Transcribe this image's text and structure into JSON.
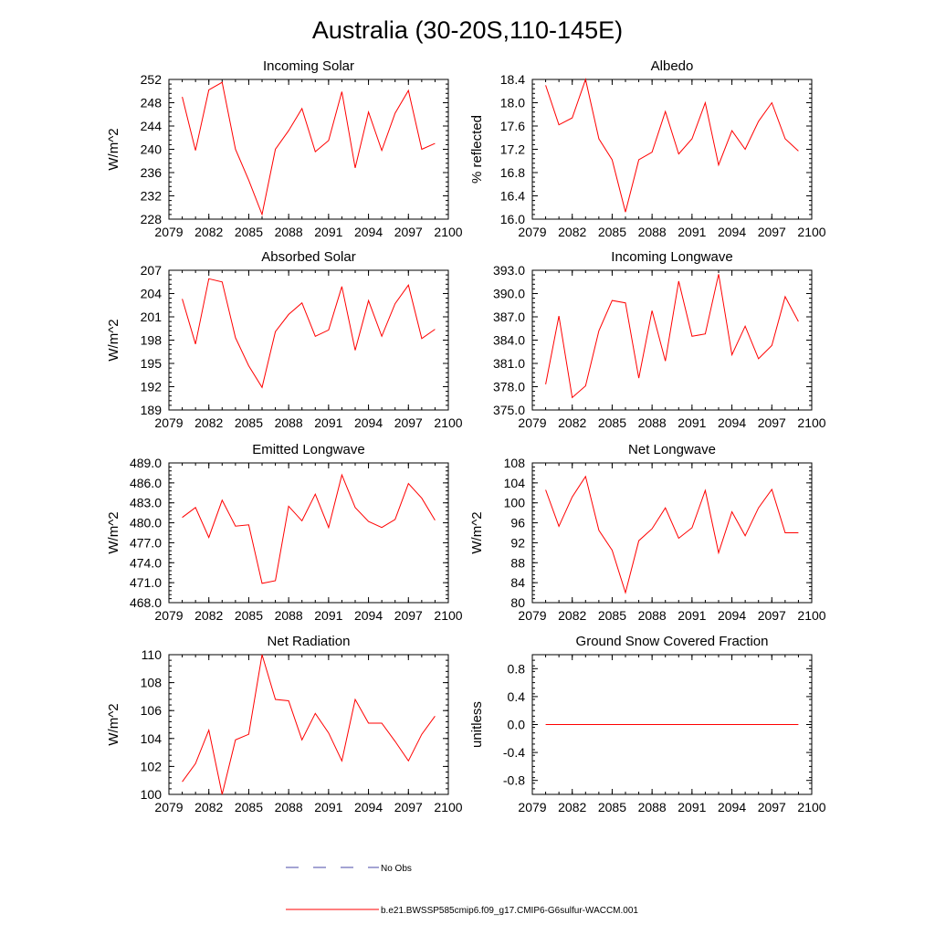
{
  "title": "Australia (30-20S,110-145E)",
  "legend": {
    "obs_label": "No Obs",
    "obs_color": "#4a4aa8",
    "model_label": "b.e21.BWSSP585cmip6.f09_g17.CMIP6-G6sulfur-WACCM.001",
    "model_color": "#ff0000"
  },
  "chart_data": [
    {
      "type": "line",
      "title": "Incoming Solar",
      "ylabel": "W/m^2",
      "xlim": [
        2079,
        2100
      ],
      "xticks": [
        "2079",
        "2082",
        "2085",
        "2088",
        "2091",
        "2094",
        "2097",
        "2100"
      ],
      "ylim": [
        228,
        252
      ],
      "yticks": [
        "228",
        "232",
        "236",
        "240",
        "244",
        "248",
        "252"
      ],
      "x": [
        2080,
        2081,
        2082,
        2083,
        2084,
        2085,
        2086,
        2087,
        2088,
        2089,
        2090,
        2091,
        2092,
        2093,
        2094,
        2095,
        2096,
        2097,
        2098,
        2099
      ],
      "series": [
        {
          "values": [
            249.0,
            239.8,
            250.2,
            251.5,
            240.0,
            234.7,
            228.8,
            240.0,
            243.2,
            247.0,
            239.6,
            241.5,
            249.9,
            236.8,
            246.4,
            239.8,
            246.2,
            250.1,
            240.0,
            241.0
          ]
        }
      ]
    },
    {
      "type": "line",
      "title": "Albedo",
      "ylabel": "% reflected",
      "xlim": [
        2079,
        2100
      ],
      "xticks": [
        "2079",
        "2082",
        "2085",
        "2088",
        "2091",
        "2094",
        "2097",
        "2100"
      ],
      "ylim": [
        16.0,
        18.4
      ],
      "yticks": [
        "16.0",
        "16.4",
        "16.8",
        "17.2",
        "17.6",
        "18.0",
        "18.4"
      ],
      "x": [
        2080,
        2081,
        2082,
        2083,
        2084,
        2085,
        2086,
        2087,
        2088,
        2089,
        2090,
        2091,
        2092,
        2093,
        2094,
        2095,
        2096,
        2097,
        2098,
        2099
      ],
      "series": [
        {
          "values": [
            18.3,
            17.62,
            17.74,
            18.4,
            17.38,
            17.02,
            16.12,
            17.02,
            17.15,
            17.85,
            17.12,
            17.38,
            18.0,
            16.93,
            17.52,
            17.2,
            17.68,
            18.0,
            17.38,
            17.17
          ]
        }
      ]
    },
    {
      "type": "line",
      "title": "Absorbed Solar",
      "ylabel": "W/m^2",
      "xlim": [
        2079,
        2100
      ],
      "xticks": [
        "2079",
        "2082",
        "2085",
        "2088",
        "2091",
        "2094",
        "2097",
        "2100"
      ],
      "ylim": [
        189,
        207
      ],
      "yticks": [
        "189",
        "192",
        "195",
        "198",
        "201",
        "204",
        "207"
      ],
      "x": [
        2080,
        2081,
        2082,
        2083,
        2084,
        2085,
        2086,
        2087,
        2088,
        2089,
        2090,
        2091,
        2092,
        2093,
        2094,
        2095,
        2096,
        2097,
        2098,
        2099
      ],
      "series": [
        {
          "values": [
            203.3,
            197.5,
            205.9,
            205.5,
            198.3,
            194.7,
            191.9,
            199.1,
            201.3,
            202.8,
            198.5,
            199.3,
            204.9,
            196.7,
            203.1,
            198.5,
            202.7,
            205.1,
            198.2,
            199.4
          ]
        }
      ]
    },
    {
      "type": "line",
      "title": "Incoming Longwave",
      "ylabel": "",
      "xlim": [
        2079,
        2100
      ],
      "xticks": [
        "2079",
        "2082",
        "2085",
        "2088",
        "2091",
        "2094",
        "2097",
        "2100"
      ],
      "ylim": [
        375.0,
        393.0
      ],
      "yticks": [
        "375.0",
        "378.0",
        "381.0",
        "384.0",
        "387.0",
        "390.0",
        "393.0"
      ],
      "x": [
        2080,
        2081,
        2082,
        2083,
        2084,
        2085,
        2086,
        2087,
        2088,
        2089,
        2090,
        2091,
        2092,
        2093,
        2094,
        2095,
        2096,
        2097,
        2098,
        2099
      ],
      "series": [
        {
          "values": [
            378.3,
            387.1,
            376.6,
            378.1,
            385.2,
            389.1,
            388.8,
            379.1,
            387.8,
            381.3,
            391.6,
            384.5,
            384.8,
            392.5,
            382.1,
            385.8,
            381.6,
            383.3,
            389.6,
            386.4
          ]
        }
      ]
    },
    {
      "type": "line",
      "title": "Emitted Longwave",
      "ylabel": "W/m^2",
      "xlim": [
        2079,
        2100
      ],
      "xticks": [
        "2079",
        "2082",
        "2085",
        "2088",
        "2091",
        "2094",
        "2097",
        "2100"
      ],
      "ylim": [
        468.0,
        489.0
      ],
      "yticks": [
        "468.0",
        "471.0",
        "474.0",
        "477.0",
        "480.0",
        "483.0",
        "486.0",
        "489.0"
      ],
      "x": [
        2080,
        2081,
        2082,
        2083,
        2084,
        2085,
        2086,
        2087,
        2088,
        2089,
        2090,
        2091,
        2092,
        2093,
        2094,
        2095,
        2096,
        2097,
        2098,
        2099
      ],
      "series": [
        {
          "values": [
            480.8,
            482.3,
            477.8,
            483.4,
            479.5,
            479.7,
            470.9,
            471.3,
            482.5,
            480.3,
            484.3,
            479.3,
            487.2,
            482.3,
            480.2,
            479.3,
            480.5,
            485.9,
            483.7,
            480.4
          ]
        }
      ]
    },
    {
      "type": "line",
      "title": "Net Longwave",
      "ylabel": "W/m^2",
      "xlim": [
        2079,
        2100
      ],
      "xticks": [
        "2079",
        "2082",
        "2085",
        "2088",
        "2091",
        "2094",
        "2097",
        "2100"
      ],
      "ylim": [
        80,
        108
      ],
      "yticks": [
        "80",
        "84",
        "88",
        "92",
        "96",
        "100",
        "104",
        "108"
      ],
      "x": [
        2080,
        2081,
        2082,
        2083,
        2084,
        2085,
        2086,
        2087,
        2088,
        2089,
        2090,
        2091,
        2092,
        2093,
        2094,
        2095,
        2096,
        2097,
        2098,
        2099
      ],
      "series": [
        {
          "values": [
            102.6,
            95.3,
            101.2,
            105.3,
            94.5,
            90.5,
            82.0,
            92.4,
            94.8,
            99.0,
            92.9,
            95.0,
            102.5,
            90.0,
            98.2,
            93.4,
            99.0,
            102.7,
            94.0,
            94.0
          ]
        }
      ]
    },
    {
      "type": "line",
      "title": "Net Radiation",
      "ylabel": "W/m^2",
      "xlim": [
        2079,
        2100
      ],
      "xticks": [
        "2079",
        "2082",
        "2085",
        "2088",
        "2091",
        "2094",
        "2097",
        "2100"
      ],
      "ylim": [
        100,
        110
      ],
      "yticks": [
        "100",
        "102",
        "104",
        "106",
        "108",
        "110"
      ],
      "x": [
        2080,
        2081,
        2082,
        2083,
        2084,
        2085,
        2086,
        2087,
        2088,
        2089,
        2090,
        2091,
        2092,
        2093,
        2094,
        2095,
        2096,
        2097,
        2098,
        2099
      ],
      "series": [
        {
          "values": [
            100.9,
            102.2,
            104.6,
            100.0,
            103.9,
            104.3,
            110.0,
            106.8,
            106.7,
            103.9,
            105.8,
            104.4,
            102.4,
            106.8,
            105.1,
            105.1,
            103.8,
            102.4,
            104.3,
            105.6
          ]
        }
      ]
    },
    {
      "type": "line",
      "title": "Ground Snow Covered Fraction",
      "ylabel": "unitless",
      "xlim": [
        2079,
        2100
      ],
      "xticks": [
        "2079",
        "2082",
        "2085",
        "2088",
        "2091",
        "2094",
        "2097",
        "2100"
      ],
      "ylim": [
        -1.0,
        1.0
      ],
      "yticks": [
        "-0.8",
        "-0.4",
        "0.0",
        "0.4",
        "0.8"
      ],
      "x": [
        2080,
        2081,
        2082,
        2083,
        2084,
        2085,
        2086,
        2087,
        2088,
        2089,
        2090,
        2091,
        2092,
        2093,
        2094,
        2095,
        2096,
        2097,
        2098,
        2099
      ],
      "series": [
        {
          "values": [
            0,
            0,
            0,
            0,
            0,
            0,
            0,
            0,
            0,
            0,
            0,
            0,
            0,
            0,
            0,
            0,
            0,
            0,
            0,
            0
          ]
        }
      ]
    }
  ]
}
